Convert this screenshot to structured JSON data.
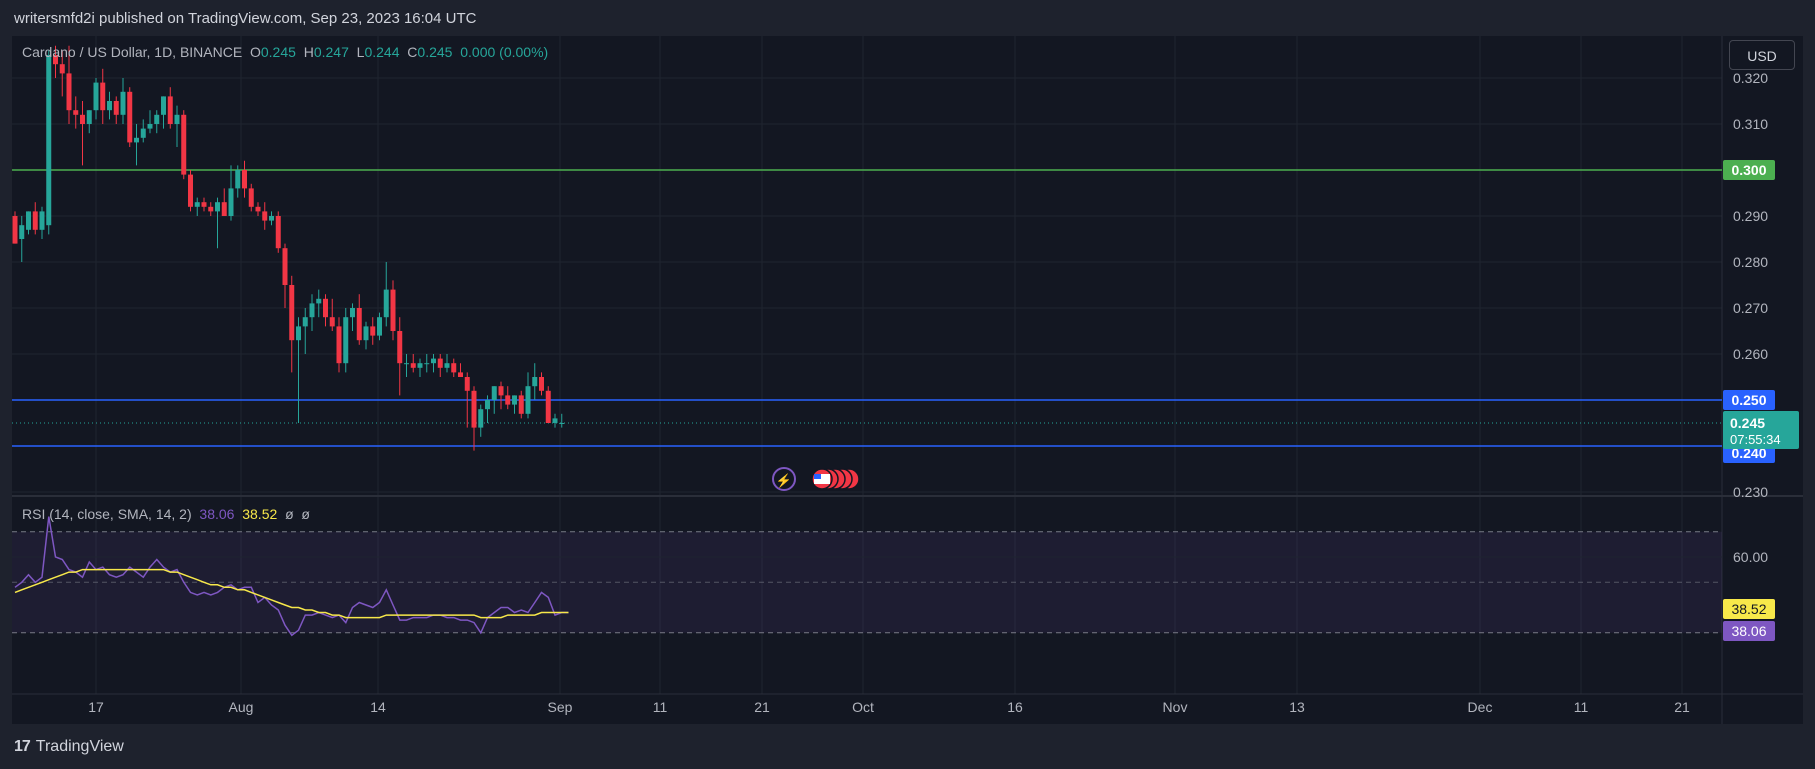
{
  "header": {
    "published_text": "writersmfd2i published on TradingView.com, Sep 23, 2023 16:04 UTC"
  },
  "legend": {
    "symbol": "Cardano / US Dollar, 1D, BINANCE",
    "o_label": "O",
    "o_value": "0.245",
    "h_label": "H",
    "h_value": "0.247",
    "l_label": "L",
    "l_value": "0.244",
    "c_label": "C",
    "c_value": "0.245",
    "change": "0.000 (0.00%)"
  },
  "currency_button": "USD",
  "rsi_legend": {
    "label": "RSI (14, close, SMA, 14, 2)",
    "rsi_value": "38.06",
    "sma_value": "38.52",
    "extra1": "ø",
    "extra2": "ø"
  },
  "footer": {
    "brand_logo": "17",
    "brand_name": "TradingView"
  },
  "colors": {
    "background": "#131722",
    "up": "#26a69a",
    "down": "#f23645",
    "green_level": "#4caf50",
    "blue_level": "#2962ff",
    "rsi_line": "#7e57c2",
    "rsi_sma": "#f7e84a"
  },
  "chart_data": [
    {
      "type": "candlestick",
      "title": "Cardano / US Dollar, 1D, BINANCE",
      "y_ticks": [
        "0.320",
        "0.310",
        "0.300",
        "0.290",
        "0.280",
        "0.270",
        "0.260",
        "0.250",
        "0.240",
        "0.230"
      ],
      "ylim": [
        0.23,
        0.325
      ],
      "x_ticks": [
        "17",
        "Aug",
        "14",
        "Sep",
        "11",
        "21",
        "Oct",
        "16",
        "Nov",
        "13",
        "Dec",
        "11",
        "21"
      ],
      "levels": [
        {
          "value": 0.3,
          "label": "0.300",
          "color": "#4caf50"
        },
        {
          "value": 0.25,
          "label": "0.250",
          "color": "#2962ff"
        },
        {
          "value": 0.24,
          "label": "0.240",
          "color": "#2962ff"
        }
      ],
      "last_price": {
        "value": 0.245,
        "label": "0.245",
        "countdown": "07:55:34"
      },
      "candles": [
        {
          "o": 0.29,
          "h": 0.291,
          "l": 0.284,
          "c": 0.284
        },
        {
          "o": 0.285,
          "h": 0.29,
          "l": 0.28,
          "c": 0.288
        },
        {
          "o": 0.287,
          "h": 0.291,
          "l": 0.286,
          "c": 0.291
        },
        {
          "o": 0.291,
          "h": 0.293,
          "l": 0.286,
          "c": 0.287
        },
        {
          "o": 0.287,
          "h": 0.292,
          "l": 0.285,
          "c": 0.291
        },
        {
          "o": 0.288,
          "h": 0.326,
          "l": 0.286,
          "c": 0.325
        },
        {
          "o": 0.325,
          "h": 0.327,
          "l": 0.32,
          "c": 0.323
        },
        {
          "o": 0.323,
          "h": 0.326,
          "l": 0.316,
          "c": 0.321
        },
        {
          "o": 0.321,
          "h": 0.327,
          "l": 0.31,
          "c": 0.313
        },
        {
          "o": 0.313,
          "h": 0.316,
          "l": 0.309,
          "c": 0.312
        },
        {
          "o": 0.312,
          "h": 0.315,
          "l": 0.301,
          "c": 0.31
        },
        {
          "o": 0.31,
          "h": 0.313,
          "l": 0.308,
          "c": 0.313
        },
        {
          "o": 0.313,
          "h": 0.32,
          "l": 0.311,
          "c": 0.319
        },
        {
          "o": 0.319,
          "h": 0.322,
          "l": 0.31,
          "c": 0.313
        },
        {
          "o": 0.313,
          "h": 0.317,
          "l": 0.311,
          "c": 0.315
        },
        {
          "o": 0.315,
          "h": 0.316,
          "l": 0.31,
          "c": 0.312
        },
        {
          "o": 0.312,
          "h": 0.32,
          "l": 0.31,
          "c": 0.317
        },
        {
          "o": 0.317,
          "h": 0.318,
          "l": 0.305,
          "c": 0.306
        },
        {
          "o": 0.306,
          "h": 0.31,
          "l": 0.301,
          "c": 0.307
        },
        {
          "o": 0.307,
          "h": 0.311,
          "l": 0.306,
          "c": 0.309
        },
        {
          "o": 0.309,
          "h": 0.313,
          "l": 0.308,
          "c": 0.31
        },
        {
          "o": 0.31,
          "h": 0.313,
          "l": 0.308,
          "c": 0.312
        },
        {
          "o": 0.312,
          "h": 0.316,
          "l": 0.309,
          "c": 0.316
        },
        {
          "o": 0.316,
          "h": 0.318,
          "l": 0.309,
          "c": 0.31
        },
        {
          "o": 0.31,
          "h": 0.314,
          "l": 0.305,
          "c": 0.312
        },
        {
          "o": 0.312,
          "h": 0.313,
          "l": 0.298,
          "c": 0.299
        },
        {
          "o": 0.299,
          "h": 0.3,
          "l": 0.291,
          "c": 0.292
        },
        {
          "o": 0.292,
          "h": 0.294,
          "l": 0.29,
          "c": 0.293
        },
        {
          "o": 0.293,
          "h": 0.294,
          "l": 0.291,
          "c": 0.292
        },
        {
          "o": 0.292,
          "h": 0.293,
          "l": 0.29,
          "c": 0.291
        },
        {
          "o": 0.291,
          "h": 0.294,
          "l": 0.283,
          "c": 0.293
        },
        {
          "o": 0.293,
          "h": 0.296,
          "l": 0.29,
          "c": 0.29
        },
        {
          "o": 0.29,
          "h": 0.301,
          "l": 0.289,
          "c": 0.296
        },
        {
          "o": 0.296,
          "h": 0.301,
          "l": 0.294,
          "c": 0.3
        },
        {
          "o": 0.3,
          "h": 0.302,
          "l": 0.294,
          "c": 0.296
        },
        {
          "o": 0.296,
          "h": 0.297,
          "l": 0.291,
          "c": 0.292
        },
        {
          "o": 0.292,
          "h": 0.293,
          "l": 0.29,
          "c": 0.291
        },
        {
          "o": 0.291,
          "h": 0.293,
          "l": 0.287,
          "c": 0.289
        },
        {
          "o": 0.289,
          "h": 0.291,
          "l": 0.288,
          "c": 0.29
        },
        {
          "o": 0.29,
          "h": 0.291,
          "l": 0.282,
          "c": 0.283
        },
        {
          "o": 0.283,
          "h": 0.284,
          "l": 0.27,
          "c": 0.275
        },
        {
          "o": 0.275,
          "h": 0.277,
          "l": 0.256,
          "c": 0.263
        },
        {
          "o": 0.263,
          "h": 0.268,
          "l": 0.245,
          "c": 0.266
        },
        {
          "o": 0.266,
          "h": 0.27,
          "l": 0.26,
          "c": 0.268
        },
        {
          "o": 0.268,
          "h": 0.273,
          "l": 0.265,
          "c": 0.271
        },
        {
          "o": 0.271,
          "h": 0.274,
          "l": 0.268,
          "c": 0.272
        },
        {
          "o": 0.272,
          "h": 0.273,
          "l": 0.266,
          "c": 0.268
        },
        {
          "o": 0.268,
          "h": 0.272,
          "l": 0.265,
          "c": 0.266
        },
        {
          "o": 0.266,
          "h": 0.268,
          "l": 0.256,
          "c": 0.258
        },
        {
          "o": 0.258,
          "h": 0.27,
          "l": 0.256,
          "c": 0.268
        },
        {
          "o": 0.268,
          "h": 0.271,
          "l": 0.265,
          "c": 0.27
        },
        {
          "o": 0.27,
          "h": 0.273,
          "l": 0.262,
          "c": 0.263
        },
        {
          "o": 0.263,
          "h": 0.267,
          "l": 0.261,
          "c": 0.266
        },
        {
          "o": 0.266,
          "h": 0.268,
          "l": 0.262,
          "c": 0.264
        },
        {
          "o": 0.264,
          "h": 0.269,
          "l": 0.263,
          "c": 0.268
        },
        {
          "o": 0.268,
          "h": 0.28,
          "l": 0.266,
          "c": 0.274
        },
        {
          "o": 0.274,
          "h": 0.276,
          "l": 0.263,
          "c": 0.265
        },
        {
          "o": 0.265,
          "h": 0.268,
          "l": 0.251,
          "c": 0.258
        },
        {
          "o": 0.258,
          "h": 0.26,
          "l": 0.255,
          "c": 0.258
        },
        {
          "o": 0.258,
          "h": 0.26,
          "l": 0.256,
          "c": 0.257
        },
        {
          "o": 0.257,
          "h": 0.259,
          "l": 0.255,
          "c": 0.258
        },
        {
          "o": 0.258,
          "h": 0.26,
          "l": 0.256,
          "c": 0.258
        },
        {
          "o": 0.258,
          "h": 0.26,
          "l": 0.256,
          "c": 0.259
        },
        {
          "o": 0.259,
          "h": 0.26,
          "l": 0.255,
          "c": 0.257
        },
        {
          "o": 0.257,
          "h": 0.26,
          "l": 0.256,
          "c": 0.258
        },
        {
          "o": 0.258,
          "h": 0.259,
          "l": 0.255,
          "c": 0.256
        },
        {
          "o": 0.256,
          "h": 0.258,
          "l": 0.255,
          "c": 0.255
        },
        {
          "o": 0.255,
          "h": 0.256,
          "l": 0.244,
          "c": 0.252
        },
        {
          "o": 0.252,
          "h": 0.253,
          "l": 0.239,
          "c": 0.244
        },
        {
          "o": 0.244,
          "h": 0.249,
          "l": 0.242,
          "c": 0.248
        },
        {
          "o": 0.248,
          "h": 0.251,
          "l": 0.245,
          "c": 0.25
        },
        {
          "o": 0.25,
          "h": 0.253,
          "l": 0.247,
          "c": 0.253
        },
        {
          "o": 0.253,
          "h": 0.254,
          "l": 0.248,
          "c": 0.251
        },
        {
          "o": 0.251,
          "h": 0.253,
          "l": 0.248,
          "c": 0.249
        },
        {
          "o": 0.249,
          "h": 0.251,
          "l": 0.247,
          "c": 0.251
        },
        {
          "o": 0.251,
          "h": 0.252,
          "l": 0.246,
          "c": 0.247
        },
        {
          "o": 0.247,
          "h": 0.256,
          "l": 0.246,
          "c": 0.253
        },
        {
          "o": 0.253,
          "h": 0.258,
          "l": 0.25,
          "c": 0.255
        },
        {
          "o": 0.255,
          "h": 0.256,
          "l": 0.251,
          "c": 0.252
        },
        {
          "o": 0.252,
          "h": 0.253,
          "l": 0.245,
          "c": 0.245
        },
        {
          "o": 0.245,
          "h": 0.247,
          "l": 0.244,
          "c": 0.246
        },
        {
          "o": 0.245,
          "h": 0.247,
          "l": 0.244,
          "c": 0.245
        }
      ]
    },
    {
      "type": "line",
      "title": "RSI (14, close, SMA, 14, 2)",
      "y_ticks": [
        "60.00"
      ],
      "ylim": [
        20,
        80
      ],
      "bands": {
        "upper": 70,
        "middle": 50,
        "lower": 30
      },
      "series": [
        {
          "name": "RSI",
          "color": "#7e57c2",
          "values": [
            48,
            50,
            53,
            50,
            52,
            76,
            60,
            59,
            55,
            54,
            52,
            58,
            55,
            56,
            53,
            52,
            53,
            56,
            54,
            52,
            56,
            59,
            56,
            54,
            55,
            50,
            46,
            45,
            46,
            45,
            46,
            48,
            49,
            47,
            48,
            48,
            42,
            44,
            41,
            39,
            33,
            29,
            31,
            37,
            37,
            38,
            37,
            36,
            37,
            34,
            40,
            42,
            41,
            40,
            42,
            47,
            41,
            35,
            35,
            36,
            36,
            36,
            37,
            37,
            36,
            36,
            35,
            35,
            34,
            30,
            36,
            38,
            40,
            40,
            38,
            39,
            38,
            42,
            46,
            44,
            37,
            38,
            38
          ]
        },
        {
          "name": "SMA",
          "color": "#f7e84a",
          "values": [
            46,
            47,
            48,
            49,
            50,
            51,
            52,
            53,
            54,
            54,
            55,
            55,
            55,
            55,
            55,
            55,
            55,
            55,
            55,
            55,
            55,
            55,
            55,
            54,
            54,
            53,
            52,
            51,
            50,
            49,
            49,
            48,
            48,
            47,
            47,
            46,
            45,
            44,
            43,
            42,
            41,
            40,
            40,
            39,
            39,
            38,
            38,
            37,
            37,
            36,
            36,
            36,
            36,
            36,
            36,
            37,
            37,
            37,
            37,
            37,
            37,
            37,
            37,
            37,
            37,
            37,
            37,
            37,
            37,
            36,
            36,
            36,
            36,
            37,
            37,
            37,
            37,
            37,
            38,
            38,
            38,
            38,
            38
          ]
        }
      ]
    }
  ]
}
